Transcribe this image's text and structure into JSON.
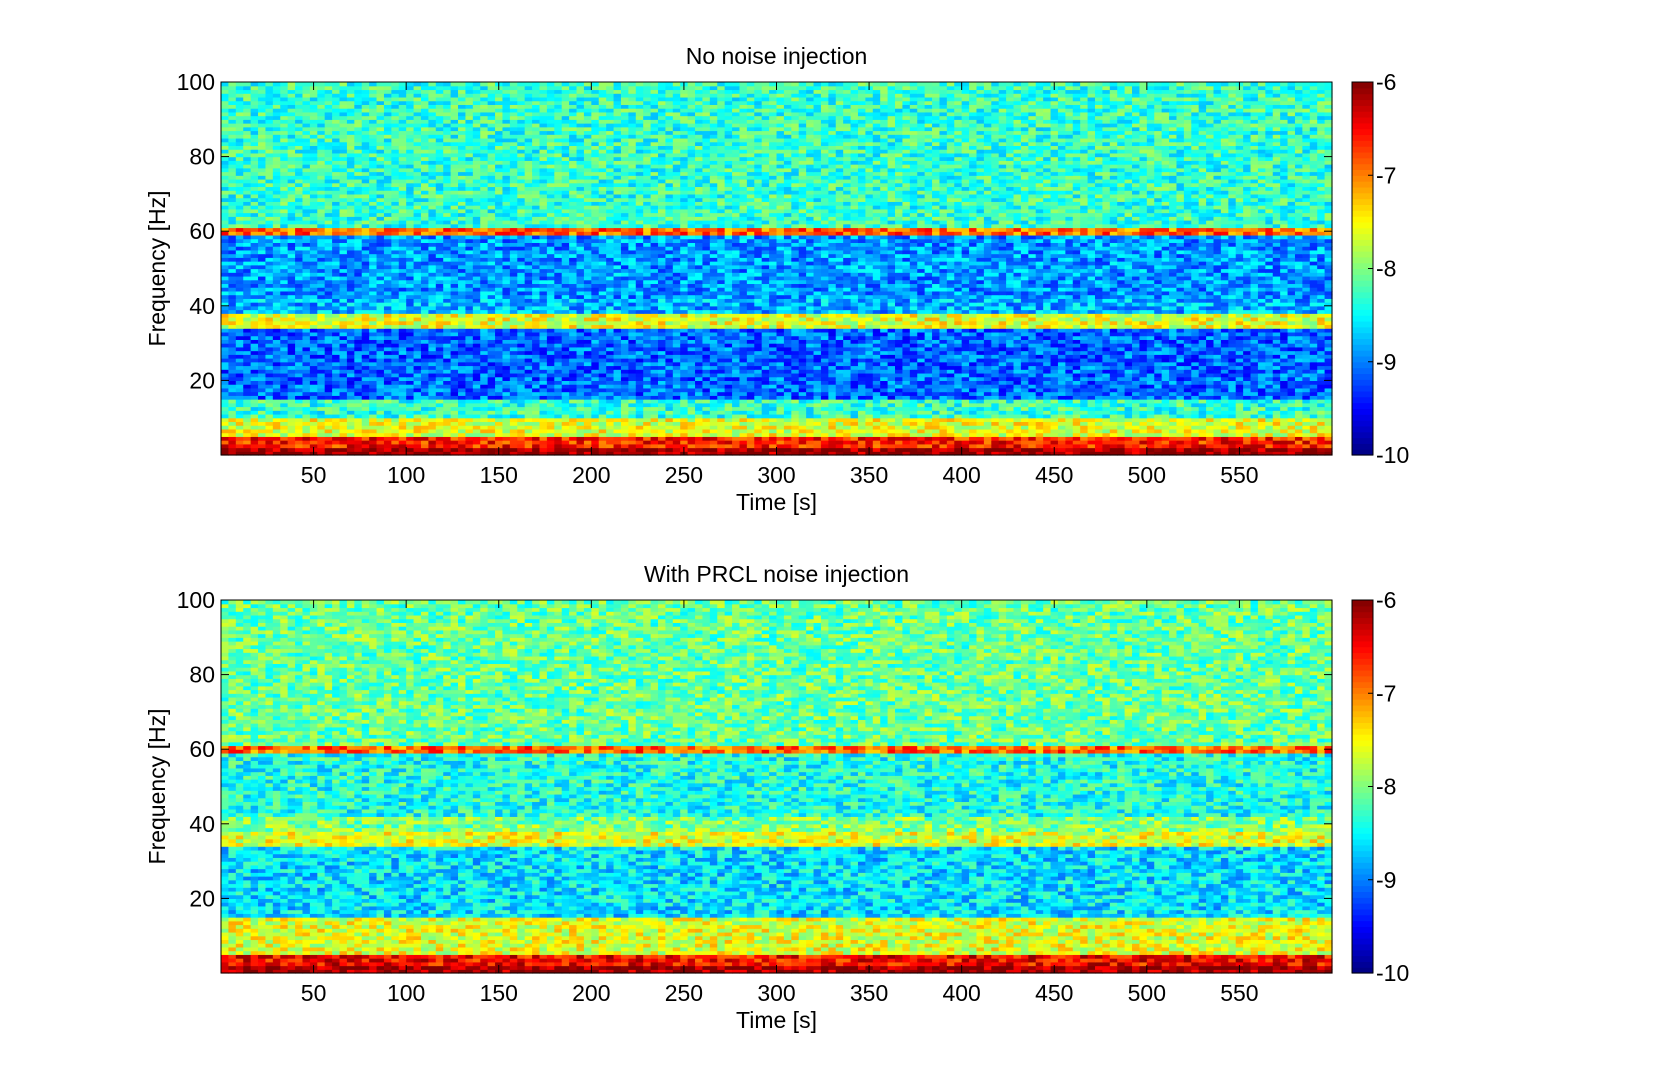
{
  "chart_data": [
    {
      "type": "heatmap",
      "title": "No noise injection",
      "xlabel": "Time [s]",
      "ylabel": "Frequency [Hz]",
      "xlim": [
        0,
        600
      ],
      "ylim": [
        0,
        100
      ],
      "xticks": [
        50,
        100,
        150,
        200,
        250,
        300,
        350,
        400,
        450,
        500,
        550
      ],
      "yticks": [
        20,
        40,
        60,
        80,
        100
      ],
      "colorbar": {
        "min": -10,
        "max": -6,
        "ticks": [
          -6,
          -7,
          -8,
          -9,
          -10
        ],
        "colormap": "jet"
      },
      "bands": [
        {
          "freq_range": [
            0,
            2
          ],
          "level": -6.1
        },
        {
          "freq_range": [
            2,
            5
          ],
          "level": -6.6
        },
        {
          "freq_range": [
            5,
            10
          ],
          "level": -7.6
        },
        {
          "freq_range": [
            10,
            15
          ],
          "level": -8.3
        },
        {
          "freq_range": [
            15,
            34
          ],
          "level": -9.1
        },
        {
          "freq_range": [
            34,
            38
          ],
          "level": -7.6
        },
        {
          "freq_range": [
            38,
            42
          ],
          "level": -8.8
        },
        {
          "freq_range": [
            42,
            59
          ],
          "level": -8.9
        },
        {
          "freq_range": [
            59,
            61
          ],
          "level": -6.9
        },
        {
          "freq_range": [
            61,
            100
          ],
          "level": -8.3
        }
      ]
    },
    {
      "type": "heatmap",
      "title": "With PRCL noise injection",
      "xlabel": "Time [s]",
      "ylabel": "Frequency [Hz]",
      "xlim": [
        0,
        600
      ],
      "ylim": [
        0,
        100
      ],
      "xticks": [
        50,
        100,
        150,
        200,
        250,
        300,
        350,
        400,
        450,
        500,
        550
      ],
      "yticks": [
        20,
        40,
        60,
        80,
        100
      ],
      "colorbar": {
        "min": -10,
        "max": -6,
        "ticks": [
          -6,
          -7,
          -8,
          -9,
          -10
        ],
        "colormap": "jet"
      },
      "bands": [
        {
          "freq_range": [
            0,
            2
          ],
          "level": -6.1
        },
        {
          "freq_range": [
            2,
            5
          ],
          "level": -6.5
        },
        {
          "freq_range": [
            5,
            15
          ],
          "level": -7.6
        },
        {
          "freq_range": [
            15,
            34
          ],
          "level": -8.6
        },
        {
          "freq_range": [
            34,
            38
          ],
          "level": -7.6
        },
        {
          "freq_range": [
            38,
            42
          ],
          "level": -8.0
        },
        {
          "freq_range": [
            42,
            59
          ],
          "level": -8.4
        },
        {
          "freq_range": [
            59,
            61
          ],
          "level": -6.9
        },
        {
          "freq_range": [
            61,
            100
          ],
          "level": -8.1
        }
      ]
    }
  ]
}
